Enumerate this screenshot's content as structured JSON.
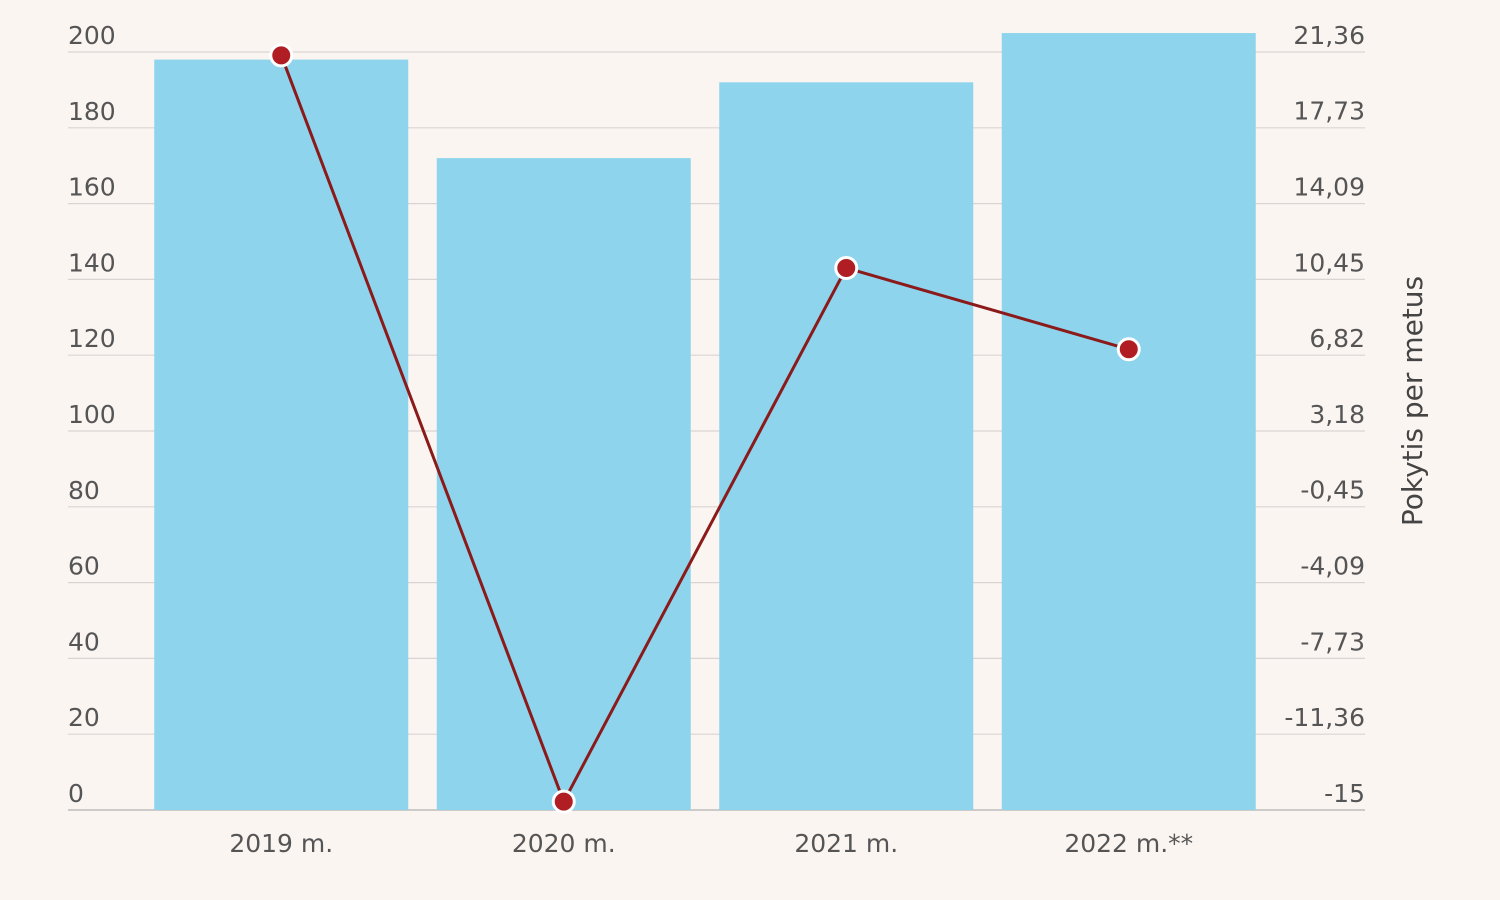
{
  "chart_data": {
    "type": "bar",
    "categories": [
      "2019 m.",
      "2020 m.",
      "2021 m.",
      "2022 m.**"
    ],
    "series": [
      {
        "type": "bar",
        "axis": "left",
        "values": [
          198,
          172,
          192,
          205
        ],
        "color": "#8dd4ec"
      },
      {
        "type": "line",
        "axis": "right",
        "values": [
          21.2,
          -14.6,
          11.0,
          7.1
        ],
        "color": "#8b1a1a",
        "marker_color": "#b01e24"
      }
    ],
    "y_left": {
      "ticks": [
        0,
        20,
        40,
        60,
        80,
        100,
        120,
        140,
        160,
        180,
        200
      ],
      "tick_labels": [
        "0",
        "20",
        "40",
        "60",
        "80",
        "100",
        "120",
        "140",
        "160",
        "180",
        "200"
      ],
      "range": [
        0,
        200
      ],
      "label": ""
    },
    "y_right": {
      "ticks": [
        -15,
        -11.36,
        -7.73,
        -4.09,
        -0.45,
        3.18,
        6.82,
        10.45,
        14.09,
        17.73,
        21.36
      ],
      "tick_labels": [
        "-15",
        "-11,36",
        "-7,73",
        "-4,09",
        "-0,45",
        "3,18",
        "6,82",
        "10,45",
        "14,09",
        "17,73",
        "21,36"
      ],
      "range": [
        -15,
        21.36
      ],
      "label": "Pokytis per metus"
    },
    "grid": true,
    "legend": "none"
  }
}
